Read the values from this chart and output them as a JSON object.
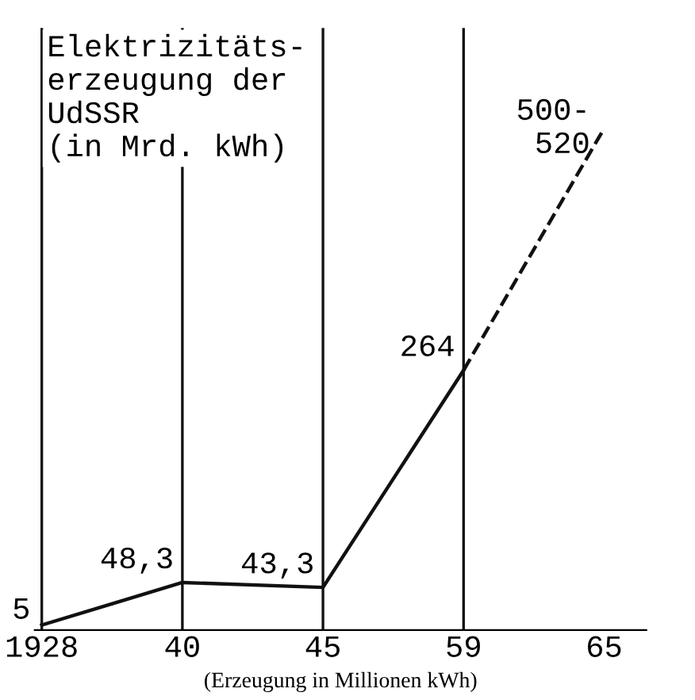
{
  "chart_data": {
    "type": "line",
    "title": "Elektrizitäts-\nerzeugung der\nUdSSR\n(in Mrd. kWh)",
    "xlabel": "(Erzeugung in Millionen kWh)",
    "categories": [
      "1928",
      "40",
      "45",
      "59",
      "65"
    ],
    "series": [
      {
        "color": "#111111",
        "line_style": "solid",
        "values": [
          5,
          48.3,
          43.3,
          264,
          null
        ],
        "value_labels": [
          "5",
          "48,3",
          "43,3",
          "264",
          null
        ]
      },
      {
        "color": "#111111",
        "line_style": "dashed",
        "values": [
          null,
          null,
          null,
          264,
          510
        ],
        "value_labels": [
          null,
          null,
          null,
          null,
          "500-\n520"
        ]
      }
    ],
    "ref_lines": [
      {
        "axis": "x",
        "value": "1928"
      },
      {
        "axis": "x",
        "value": "40"
      },
      {
        "axis": "x",
        "value": "45"
      },
      {
        "axis": "x",
        "value": "59"
      }
    ],
    "grid": false,
    "legend": false,
    "marker": "none"
  }
}
